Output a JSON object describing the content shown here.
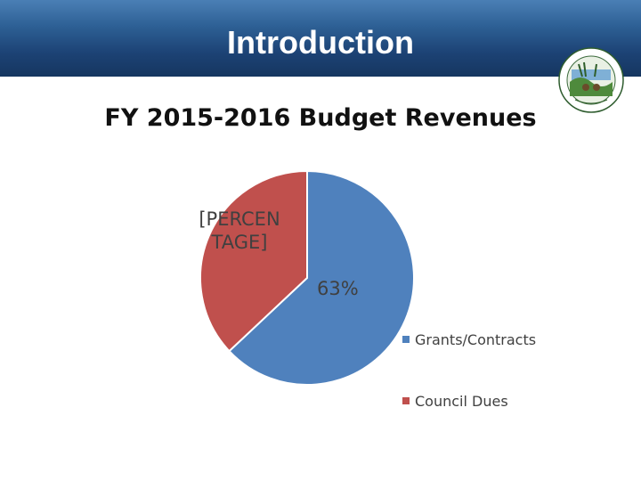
{
  "header": {
    "title": "Introduction"
  },
  "chart_data": {
    "type": "pie",
    "title": "FY 2015-2016 Budget Revenues",
    "categories": [
      "Grants/Contracts",
      "Council Dues"
    ],
    "values": [
      63,
      37
    ],
    "data_labels": [
      "63%",
      "[PERCEN TAGE]"
    ],
    "colors": [
      "#4f81bd",
      "#c0504d"
    ],
    "legend_position": "right",
    "legend": [
      "Grants/Contracts",
      "Council Dues"
    ]
  },
  "seal": {
    "icon": "organization-seal-icon"
  }
}
